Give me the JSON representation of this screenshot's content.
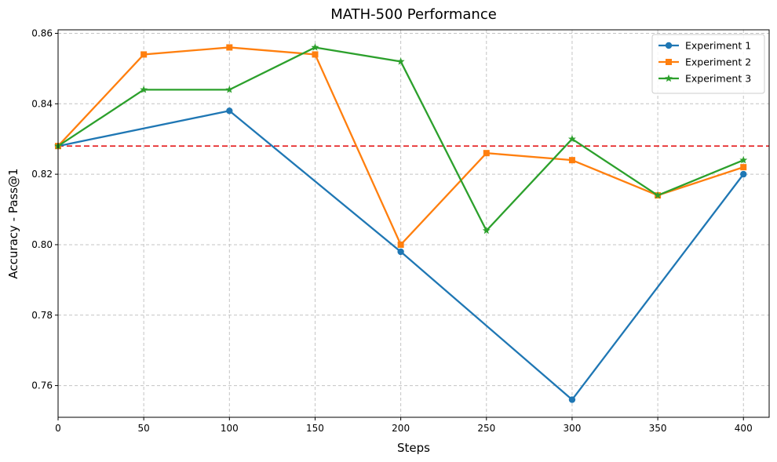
{
  "chart_data": {
    "type": "line",
    "title": "MATH-500 Performance",
    "xlabel": "Steps",
    "ylabel": "Accuracy - Pass@1",
    "xlim": [
      0,
      415
    ],
    "ylim": [
      0.751,
      0.861
    ],
    "xticks": [
      0,
      50,
      100,
      150,
      200,
      250,
      300,
      350,
      400
    ],
    "yticks": [
      0.76,
      0.78,
      0.8,
      0.82,
      0.84,
      0.86
    ],
    "ytick_labels": [
      "0.76",
      "0.78",
      "0.80",
      "0.82",
      "0.84",
      "0.86"
    ],
    "grid": true,
    "legend_position": "top-right",
    "reference_line": {
      "y": 0.828,
      "color": "#e41a1c",
      "style": "dashed"
    },
    "series": [
      {
        "name": "Experiment 1",
        "color": "#1f77b4",
        "marker": "circle",
        "x": [
          0,
          100,
          200,
          300,
          400
        ],
        "values": [
          0.828,
          0.838,
          0.798,
          0.756,
          0.82
        ]
      },
      {
        "name": "Experiment 2",
        "color": "#ff7f0e",
        "marker": "square",
        "x": [
          0,
          50,
          100,
          150,
          200,
          250,
          300,
          350,
          400
        ],
        "values": [
          0.828,
          0.854,
          0.856,
          0.854,
          0.8,
          0.826,
          0.824,
          0.814,
          0.822
        ]
      },
      {
        "name": "Experiment 3",
        "color": "#2ca02c",
        "marker": "star",
        "x": [
          0,
          50,
          100,
          150,
          200,
          250,
          300,
          350,
          400
        ],
        "values": [
          0.828,
          0.844,
          0.844,
          0.856,
          0.852,
          0.804,
          0.83,
          0.814,
          0.824
        ]
      }
    ]
  }
}
